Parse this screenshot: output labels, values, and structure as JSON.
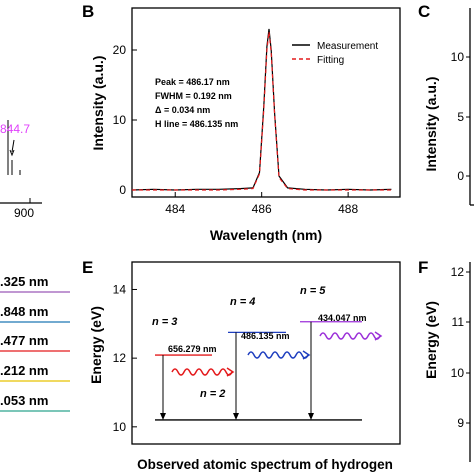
{
  "panels": {
    "b_letter": "B",
    "c_letter": "C",
    "e_letter": "E",
    "f_letter": "F"
  },
  "left_fragments": {
    "peak_label": "844.7",
    "xtick_900": "900",
    "line_labels": [
      {
        "text": ".325 nm",
        "color": "#9b59b6"
      },
      {
        "text": ".848 nm",
        "color": "#1f77b4"
      },
      {
        "text": ".477 nm",
        "color": "#e41a1c"
      },
      {
        "text": ".212 nm",
        "color": "#e6c200"
      },
      {
        "text": ".053 nm",
        "color": "#2ca58d"
      }
    ]
  },
  "right_fragments": {
    "c_ylabel": "Intensity (a.u.)",
    "c_ticks": [
      "10",
      "5",
      "0"
    ],
    "f_ylabel": "Energy (eV)",
    "f_ticks": [
      "12",
      "11",
      "10",
      "9"
    ]
  },
  "chart_data": [
    {
      "type": "line",
      "panel": "B",
      "xlabel": "Wavelength (nm)",
      "ylabel": "Intensity (a.u.)",
      "xlim": [
        483,
        489.2
      ],
      "ylim": [
        -1,
        26
      ],
      "xticks": [
        484,
        486,
        488
      ],
      "yticks": [
        0,
        10,
        20
      ],
      "legend_position": "top-right",
      "series": [
        {
          "name": "Measurement",
          "color": "#000000",
          "style": "solid",
          "x": [
            483.0,
            483.5,
            484.0,
            484.5,
            485.0,
            485.5,
            485.8,
            485.95,
            486.05,
            486.12,
            486.17,
            486.22,
            486.3,
            486.4,
            486.6,
            487.0,
            487.5,
            488.0,
            488.5,
            489.0
          ],
          "values": [
            0.0,
            0.1,
            0.0,
            0.1,
            0.1,
            0.2,
            0.3,
            2.5,
            12.0,
            20.5,
            23.0,
            20.0,
            11.0,
            2.0,
            0.3,
            0.1,
            0.0,
            0.1,
            0.0,
            0.1
          ]
        },
        {
          "name": "Fitting",
          "color": "#e41a1c",
          "style": "dashed",
          "x": [
            483.0,
            483.5,
            484.0,
            484.5,
            485.0,
            485.5,
            485.8,
            485.95,
            486.05,
            486.12,
            486.17,
            486.22,
            486.3,
            486.4,
            486.6,
            487.0,
            487.5,
            488.0,
            488.5,
            489.0
          ],
          "values": [
            0.0,
            0.0,
            0.0,
            0.0,
            0.0,
            0.1,
            0.2,
            2.3,
            11.5,
            20.0,
            22.6,
            19.6,
            10.8,
            1.8,
            0.2,
            0.0,
            0.0,
            0.0,
            0.0,
            0.0
          ]
        }
      ],
      "annotations": [
        "Peak = 486.17 nm",
        "FWHM = 0.192 nm",
        "Δ = 0.034 nm",
        "H line = 486.135 nm"
      ]
    },
    {
      "type": "diagram",
      "panel": "E",
      "title": "Observed atomic spectrum of hydrogen",
      "ylabel": "Energy (eV)",
      "ylim": [
        9.5,
        14.8
      ],
      "yticks": [
        10,
        12,
        14
      ],
      "levels": [
        {
          "label": "n = 2",
          "energy": 10.2,
          "color": "#000000"
        },
        {
          "label": "n = 3",
          "energy": 12.09,
          "color": "#e41a1c"
        },
        {
          "label": "n = 4",
          "energy": 12.75,
          "color": "#1f3fbf"
        },
        {
          "label": "n = 5",
          "energy": 13.06,
          "color": "#9b30d9"
        }
      ],
      "transitions": [
        {
          "from": "n = 3",
          "to": "n = 2",
          "wavelength": "656.279 nm",
          "color": "#e41a1c"
        },
        {
          "from": "n = 4",
          "to": "n = 2",
          "wavelength": "486.135 nm",
          "color": "#1f3fbf"
        },
        {
          "from": "n = 5",
          "to": "n = 2",
          "wavelength": "434.047 nm",
          "color": "#9b30d9"
        }
      ]
    }
  ]
}
